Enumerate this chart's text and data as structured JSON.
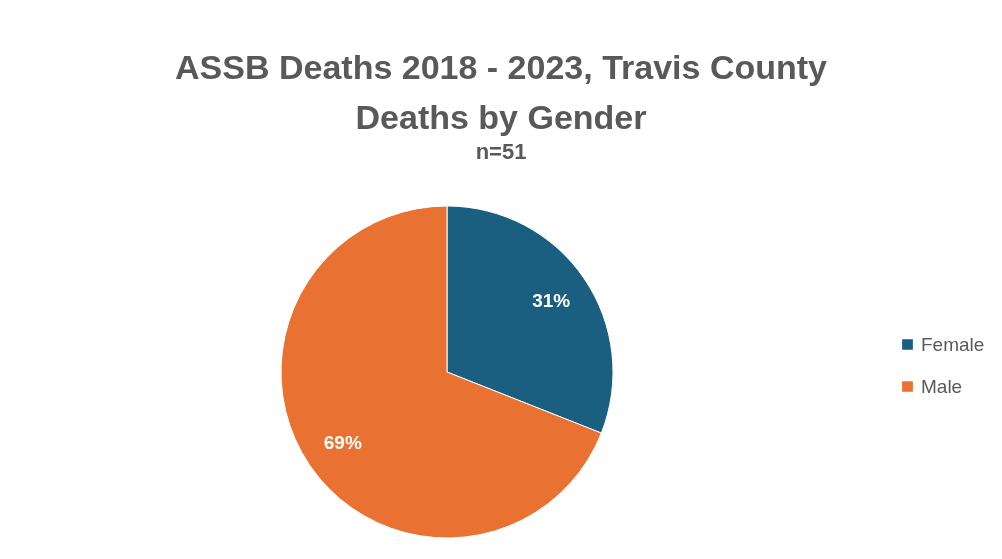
{
  "chart_data": {
    "type": "pie",
    "title": "ASSB Deaths 2018 - 2023, Travis County\nDeaths by Gender",
    "subtitle": "n=51",
    "categories": [
      "Female",
      "Male"
    ],
    "values": [
      31,
      69
    ],
    "colors": [
      "#1a5e80",
      "#e97132"
    ],
    "value_labels": [
      "31%",
      "69%"
    ],
    "legend": "right"
  }
}
